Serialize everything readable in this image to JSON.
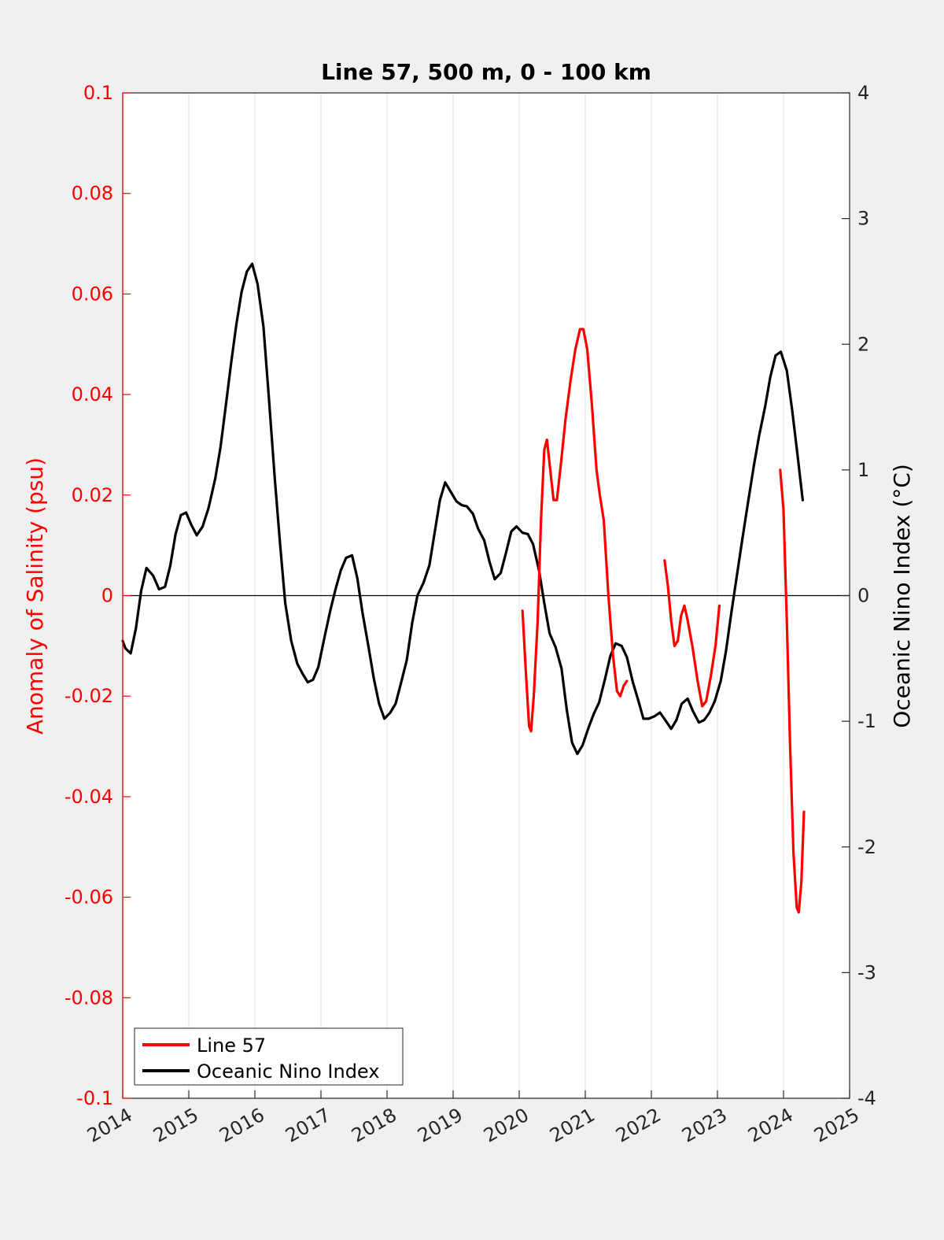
{
  "chart_data": {
    "type": "line",
    "title": "Line 57, 500 m, 0 - 100 km",
    "xlabel": "",
    "ylabel_left": "Anomaly of Salinity (psu)",
    "ylabel_right": "Oceanic Nino Index (°C)",
    "xlim": [
      2014,
      2025
    ],
    "ylim_left": [
      -0.1,
      0.1
    ],
    "ylim_right": [
      -4,
      4
    ],
    "x_ticks": [
      "2014",
      "2015",
      "2016",
      "2017",
      "2018",
      "2019",
      "2020",
      "2021",
      "2022",
      "2023",
      "2024",
      "2025"
    ],
    "y_left_ticks": [
      "0.1",
      "0.08",
      "0.06",
      "0.04",
      "0.02",
      "0",
      "-0.02",
      "-0.04",
      "-0.06",
      "-0.08",
      "-0.1"
    ],
    "y_right_ticks": [
      "4",
      "3",
      "2",
      "1",
      "0",
      "-1",
      "-2",
      "-3",
      "-4"
    ],
    "grid": "vertical",
    "legend_position": "bottom-left",
    "colors": {
      "salinity": "#ff0000",
      "oni": "#000000",
      "zero_line": "#000000"
    },
    "series": [
      {
        "name": "Line 57",
        "axis": "left",
        "segments": [
          [
            [
              2020.05,
              -0.003
            ],
            [
              2020.1,
              -0.015
            ],
            [
              2020.15,
              -0.026
            ],
            [
              2020.18,
              -0.027
            ],
            [
              2020.22,
              -0.02
            ],
            [
              2020.28,
              -0.005
            ],
            [
              2020.33,
              0.015
            ],
            [
              2020.38,
              0.029
            ],
            [
              2020.42,
              0.031
            ],
            [
              2020.47,
              0.025
            ],
            [
              2020.52,
              0.019
            ],
            [
              2020.57,
              0.019
            ],
            [
              2020.63,
              0.026
            ],
            [
              2020.7,
              0.035
            ],
            [
              2020.78,
              0.043
            ],
            [
              2020.85,
              0.049
            ],
            [
              2020.92,
              0.053
            ],
            [
              2020.97,
              0.053
            ],
            [
              2021.03,
              0.049
            ],
            [
              2021.1,
              0.038
            ],
            [
              2021.17,
              0.025
            ],
            [
              2021.22,
              0.02
            ],
            [
              2021.28,
              0.015
            ],
            [
              2021.35,
              0.0
            ],
            [
              2021.42,
              -0.012
            ],
            [
              2021.48,
              -0.019
            ],
            [
              2021.53,
              -0.02
            ],
            [
              2021.58,
              -0.018
            ],
            [
              2021.63,
              -0.017
            ]
          ],
          [
            [
              2022.2,
              0.007
            ],
            [
              2022.25,
              0.002
            ],
            [
              2022.3,
              -0.005
            ],
            [
              2022.35,
              -0.01
            ],
            [
              2022.4,
              -0.009
            ],
            [
              2022.45,
              -0.004
            ],
            [
              2022.5,
              -0.002
            ],
            [
              2022.55,
              -0.005
            ],
            [
              2022.62,
              -0.01
            ],
            [
              2022.7,
              -0.017
            ],
            [
              2022.77,
              -0.022
            ],
            [
              2022.83,
              -0.021
            ],
            [
              2022.9,
              -0.016
            ],
            [
              2022.97,
              -0.01
            ],
            [
              2023.03,
              -0.002
            ]
          ],
          [
            [
              2023.95,
              0.025
            ],
            [
              2024.0,
              0.017
            ],
            [
              2024.05,
              -0.005
            ],
            [
              2024.1,
              -0.03
            ],
            [
              2024.15,
              -0.051
            ],
            [
              2024.2,
              -0.062
            ],
            [
              2024.23,
              -0.063
            ],
            [
              2024.27,
              -0.057
            ],
            [
              2024.31,
              -0.043
            ]
          ]
        ]
      },
      {
        "name": "Oceanic Nino Index",
        "axis": "right",
        "points": [
          [
            2014.0,
            -0.36
          ],
          [
            2014.04,
            -0.42
          ],
          [
            2014.12,
            -0.46
          ],
          [
            2014.2,
            -0.26
          ],
          [
            2014.28,
            0.04
          ],
          [
            2014.36,
            0.22
          ],
          [
            2014.46,
            0.16
          ],
          [
            2014.55,
            0.05
          ],
          [
            2014.64,
            0.07
          ],
          [
            2014.72,
            0.24
          ],
          [
            2014.8,
            0.49
          ],
          [
            2014.88,
            0.64
          ],
          [
            2014.96,
            0.66
          ],
          [
            2015.04,
            0.56
          ],
          [
            2015.12,
            0.48
          ],
          [
            2015.21,
            0.55
          ],
          [
            2015.3,
            0.7
          ],
          [
            2015.4,
            0.93
          ],
          [
            2015.48,
            1.18
          ],
          [
            2015.56,
            1.51
          ],
          [
            2015.64,
            1.85
          ],
          [
            2015.72,
            2.16
          ],
          [
            2015.8,
            2.42
          ],
          [
            2015.88,
            2.58
          ],
          [
            2015.96,
            2.64
          ],
          [
            2016.04,
            2.48
          ],
          [
            2016.13,
            2.14
          ],
          [
            2016.21,
            1.59
          ],
          [
            2016.3,
            0.94
          ],
          [
            2016.38,
            0.42
          ],
          [
            2016.46,
            -0.06
          ],
          [
            2016.55,
            -0.36
          ],
          [
            2016.64,
            -0.54
          ],
          [
            2016.72,
            -0.62
          ],
          [
            2016.8,
            -0.69
          ],
          [
            2016.88,
            -0.67
          ],
          [
            2016.96,
            -0.57
          ],
          [
            2017.05,
            -0.34
          ],
          [
            2017.14,
            -0.12
          ],
          [
            2017.22,
            0.05
          ],
          [
            2017.3,
            0.2
          ],
          [
            2017.38,
            0.3
          ],
          [
            2017.47,
            0.32
          ],
          [
            2017.55,
            0.14
          ],
          [
            2017.63,
            -0.14
          ],
          [
            2017.72,
            -0.41
          ],
          [
            2017.8,
            -0.66
          ],
          [
            2017.88,
            -0.86
          ],
          [
            2017.96,
            -0.98
          ],
          [
            2018.05,
            -0.93
          ],
          [
            2018.13,
            -0.86
          ],
          [
            2018.21,
            -0.7
          ],
          [
            2018.3,
            -0.51
          ],
          [
            2018.38,
            -0.22
          ],
          [
            2018.46,
            0.0
          ],
          [
            2018.55,
            0.1
          ],
          [
            2018.64,
            0.24
          ],
          [
            2018.72,
            0.5
          ],
          [
            2018.8,
            0.76
          ],
          [
            2018.88,
            0.9
          ],
          [
            2018.96,
            0.83
          ],
          [
            2019.05,
            0.75
          ],
          [
            2019.13,
            0.72
          ],
          [
            2019.21,
            0.71
          ],
          [
            2019.3,
            0.65
          ],
          [
            2019.38,
            0.53
          ],
          [
            2019.47,
            0.44
          ],
          [
            2019.55,
            0.27
          ],
          [
            2019.63,
            0.13
          ],
          [
            2019.72,
            0.18
          ],
          [
            2019.8,
            0.34
          ],
          [
            2019.88,
            0.51
          ],
          [
            2019.96,
            0.55
          ],
          [
            2020.05,
            0.5
          ],
          [
            2020.13,
            0.49
          ],
          [
            2020.21,
            0.41
          ],
          [
            2020.3,
            0.2
          ],
          [
            2020.38,
            -0.06
          ],
          [
            2020.46,
            -0.3
          ],
          [
            2020.55,
            -0.41
          ],
          [
            2020.64,
            -0.58
          ],
          [
            2020.72,
            -0.91
          ],
          [
            2020.8,
            -1.17
          ],
          [
            2020.88,
            -1.26
          ],
          [
            2020.96,
            -1.19
          ],
          [
            2021.05,
            -1.05
          ],
          [
            2021.13,
            -0.94
          ],
          [
            2021.21,
            -0.85
          ],
          [
            2021.3,
            -0.66
          ],
          [
            2021.38,
            -0.48
          ],
          [
            2021.46,
            -0.38
          ],
          [
            2021.55,
            -0.4
          ],
          [
            2021.63,
            -0.49
          ],
          [
            2021.72,
            -0.69
          ],
          [
            2021.8,
            -0.83
          ],
          [
            2021.88,
            -0.98
          ],
          [
            2021.96,
            -0.98
          ],
          [
            2022.05,
            -0.96
          ],
          [
            2022.13,
            -0.93
          ],
          [
            2022.21,
            -0.99
          ],
          [
            2022.3,
            -1.06
          ],
          [
            2022.38,
            -0.99
          ],
          [
            2022.46,
            -0.86
          ],
          [
            2022.55,
            -0.82
          ],
          [
            2022.63,
            -0.92
          ],
          [
            2022.72,
            -1.01
          ],
          [
            2022.8,
            -0.99
          ],
          [
            2022.88,
            -0.93
          ],
          [
            2022.96,
            -0.84
          ],
          [
            2023.05,
            -0.68
          ],
          [
            2023.13,
            -0.44
          ],
          [
            2023.21,
            -0.14
          ],
          [
            2023.3,
            0.18
          ],
          [
            2023.38,
            0.46
          ],
          [
            2023.46,
            0.73
          ],
          [
            2023.55,
            1.03
          ],
          [
            2023.63,
            1.27
          ],
          [
            2023.72,
            1.5
          ],
          [
            2023.8,
            1.74
          ],
          [
            2023.88,
            1.91
          ],
          [
            2023.96,
            1.94
          ],
          [
            2024.05,
            1.79
          ],
          [
            2024.13,
            1.48
          ],
          [
            2024.21,
            1.13
          ],
          [
            2024.29,
            0.76
          ]
        ]
      }
    ],
    "legend": [
      {
        "label": "Line 57",
        "color": "#ff0000"
      },
      {
        "label": "Oceanic Nino Index",
        "color": "#000000"
      }
    ]
  }
}
